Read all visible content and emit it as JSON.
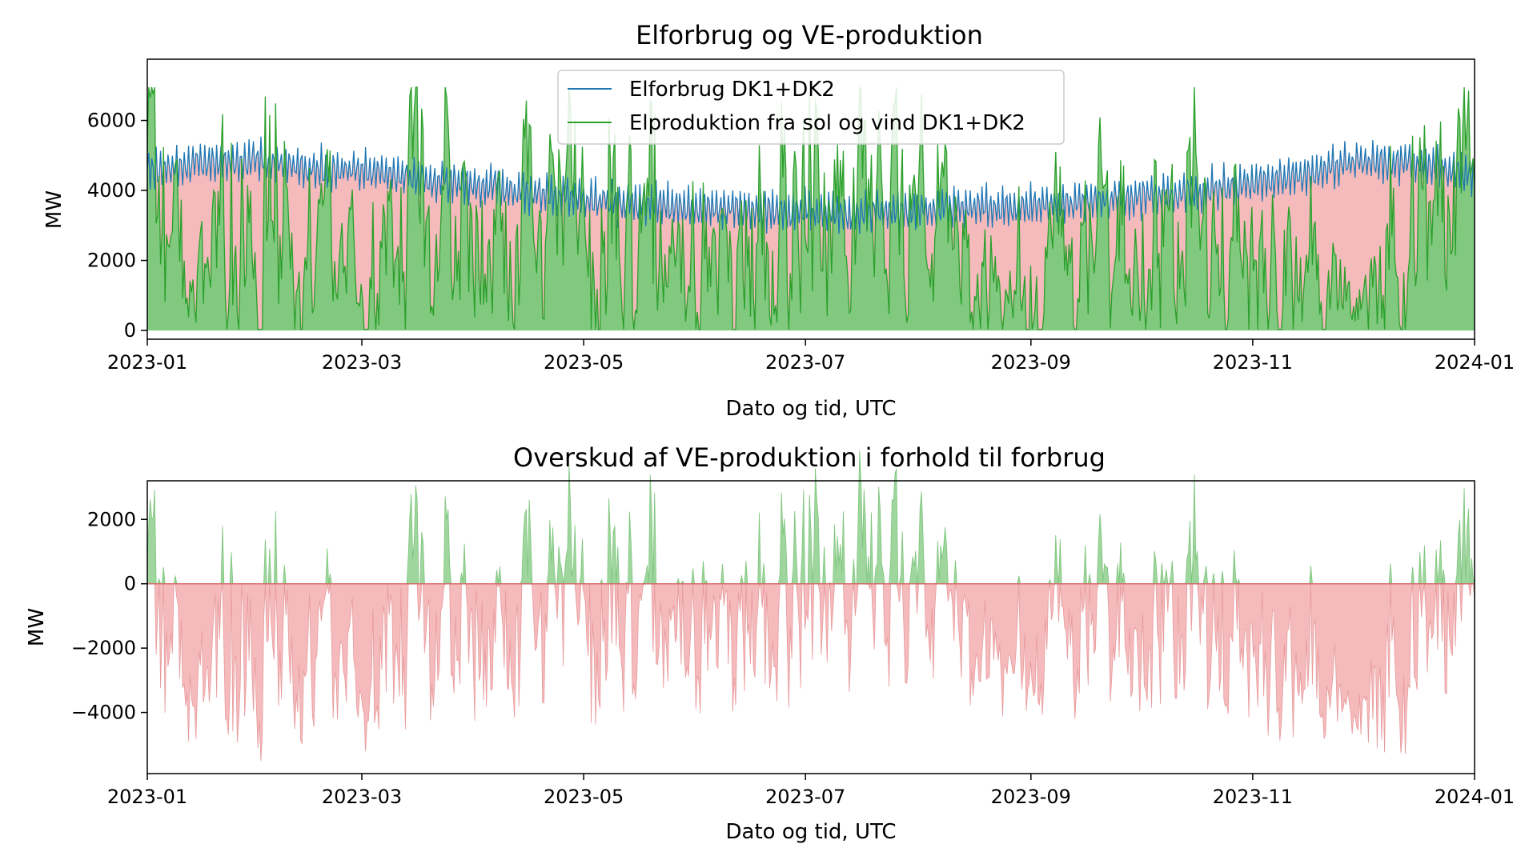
{
  "chart_data": [
    {
      "type": "area",
      "title": "Elforbrug og VE-produktion",
      "xlabel": "Dato og tid, UTC",
      "ylabel": "MW",
      "x_range": [
        "2023-01-01",
        "2024-01-01"
      ],
      "ylim": [
        -250,
        7750
      ],
      "x_ticks": [
        "2023-01",
        "2023-03",
        "2023-05",
        "2023-07",
        "2023-09",
        "2023-11",
        "2024-01"
      ],
      "y_ticks": [
        0,
        2000,
        4000,
        6000
      ],
      "legend_position": "top-center",
      "colors": {
        "consumption": "#1f77b4",
        "production": "#2ca02c",
        "production_fill": "#80c97f",
        "deficit_fill": "#f4babc"
      },
      "series": [
        {
          "name": "Elforbrug DK1+DK2",
          "x": [
            "2023-01-01",
            "2023-01-15",
            "2023-02-01",
            "2023-02-15",
            "2023-03-01",
            "2023-03-15",
            "2023-04-01",
            "2023-04-15",
            "2023-05-01",
            "2023-05-15",
            "2023-06-01",
            "2023-06-15",
            "2023-07-01",
            "2023-07-15",
            "2023-08-01",
            "2023-08-15",
            "2023-09-01",
            "2023-09-15",
            "2023-10-01",
            "2023-10-15",
            "2023-11-01",
            "2023-11-15",
            "2023-12-01",
            "2023-12-15",
            "2024-01-01"
          ],
          "y": [
            4700,
            4900,
            5000,
            4800,
            4700,
            4500,
            4300,
            4100,
            3900,
            3800,
            3650,
            3600,
            3550,
            3500,
            3600,
            3650,
            3700,
            3800,
            3950,
            4100,
            4300,
            4600,
            5000,
            4900,
            4600
          ]
        },
        {
          "name": "Elproduktion fra sol og vind DK1+DK2",
          "x": [
            "2023-01-01",
            "2023-01-15",
            "2023-02-01",
            "2023-02-15",
            "2023-03-01",
            "2023-03-15",
            "2023-04-01",
            "2023-04-15",
            "2023-05-01",
            "2023-05-15",
            "2023-06-01",
            "2023-06-15",
            "2023-07-01",
            "2023-07-15",
            "2023-08-01",
            "2023-08-15",
            "2023-09-01",
            "2023-09-15",
            "2023-10-01",
            "2023-10-15",
            "2023-11-01",
            "2023-11-15",
            "2023-12-01",
            "2023-12-15",
            "2024-01-01"
          ],
          "y": [
            3200,
            1500,
            3500,
            2200,
            1200,
            3300,
            2300,
            2200,
            3000,
            2300,
            2000,
            2400,
            3100,
            2700,
            2600,
            1900,
            1600,
            2500,
            2400,
            3000,
            2400,
            1500,
            1000,
            2800,
            3200
          ]
        }
      ]
    },
    {
      "type": "area",
      "title": "Overskud af VE-produktion i forhold til forbrug",
      "xlabel": "Dato og tid, UTC",
      "ylabel": "MW",
      "x_range": [
        "2023-01-01",
        "2024-01-01"
      ],
      "ylim": [
        -5900,
        3200
      ],
      "x_ticks": [
        "2023-01",
        "2023-03",
        "2023-05",
        "2023-07",
        "2023-09",
        "2023-11",
        "2024-01"
      ],
      "y_ticks": [
        2000,
        0,
        -2000,
        -4000
      ],
      "colors": {
        "surplus": "#9fd69e",
        "deficit": "#f4babc",
        "zero_line": "#d46a6a"
      },
      "series": [
        {
          "name": "",
          "x": [
            "2023-01-01",
            "2023-01-15",
            "2023-02-01",
            "2023-02-15",
            "2023-03-01",
            "2023-03-15",
            "2023-04-01",
            "2023-04-15",
            "2023-05-01",
            "2023-05-15",
            "2023-06-01",
            "2023-06-15",
            "2023-07-01",
            "2023-07-15",
            "2023-08-01",
            "2023-08-15",
            "2023-09-01",
            "2023-09-15",
            "2023-10-01",
            "2023-10-15",
            "2023-11-01",
            "2023-11-15",
            "2023-12-01",
            "2023-12-15",
            "2024-01-01"
          ],
          "y": [
            -1500,
            -3400,
            -1500,
            -2600,
            -3500,
            -1200,
            -2000,
            -1900,
            -900,
            -1500,
            -1650,
            -1200,
            -450,
            -800,
            -1000,
            -1750,
            -2100,
            -1300,
            -1550,
            -1100,
            -1900,
            -3100,
            -4000,
            -2100,
            -1400
          ]
        }
      ]
    }
  ]
}
